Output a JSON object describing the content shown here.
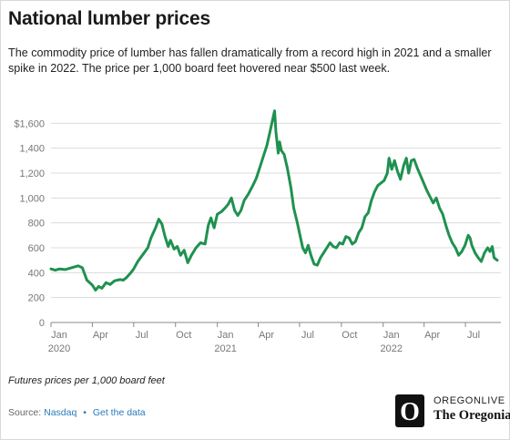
{
  "header": {
    "title": "National lumber prices",
    "subtitle": "The commodity price of lumber has fallen dramatically from a record high in 2021 and a smaller spike in 2022. The price per 1,000 board feet hovered near $500 last week."
  },
  "footer": {
    "note": "Futures prices per 1,000 board feet",
    "source_label": "Source:",
    "source_name": "Nasdaq",
    "separator": "•",
    "data_link": "Get the data"
  },
  "branding": {
    "top": "OREGONLIVE",
    "bottom": "The Oregonian",
    "logo_letter": "O"
  },
  "colors": {
    "line": "#1f9150",
    "grid": "#dcdcdc",
    "axis": "#888888",
    "tick_text": "#777777",
    "link": "#2a7ab8"
  },
  "chart_data": {
    "type": "line",
    "title": "National lumber prices",
    "xlabel": "",
    "ylabel": "",
    "note": "Futures prices per 1,000 board feet",
    "unit": "USD per 1,000 board feet",
    "xlim": [
      "2020-01-01",
      "2022-09-17"
    ],
    "ylim": [
      0,
      1800
    ],
    "y_ticks": [
      0,
      200,
      400,
      600,
      800,
      1000,
      1200,
      1400,
      1600
    ],
    "y_tick_labels": [
      "0",
      "200",
      "400",
      "600",
      "800",
      "1,000",
      "1,200",
      "1,400",
      "$1,600"
    ],
    "x_ticks": [
      {
        "date": "2020-01-01",
        "label": "Jan",
        "year": "2020"
      },
      {
        "date": "2020-04-01",
        "label": "Apr",
        "year": ""
      },
      {
        "date": "2020-07-01",
        "label": "Jul",
        "year": ""
      },
      {
        "date": "2020-10-01",
        "label": "Oct",
        "year": ""
      },
      {
        "date": "2021-01-01",
        "label": "Jan",
        "year": "2021"
      },
      {
        "date": "2021-04-01",
        "label": "Apr",
        "year": ""
      },
      {
        "date": "2021-07-01",
        "label": "Jul",
        "year": ""
      },
      {
        "date": "2021-10-01",
        "label": "Oct",
        "year": ""
      },
      {
        "date": "2022-01-01",
        "label": "Jan",
        "year": "2022"
      },
      {
        "date": "2022-04-01",
        "label": "Apr",
        "year": ""
      },
      {
        "date": "2022-07-01",
        "label": "Jul",
        "year": ""
      }
    ],
    "grid": true,
    "legend": "none",
    "series": [
      {
        "points": [
          [
            "2020-01-01",
            430
          ],
          [
            "2020-01-10",
            420
          ],
          [
            "2020-01-20",
            430
          ],
          [
            "2020-02-01",
            425
          ],
          [
            "2020-02-15",
            440
          ],
          [
            "2020-03-01",
            455
          ],
          [
            "2020-03-10",
            440
          ],
          [
            "2020-03-20",
            340
          ],
          [
            "2020-04-01",
            300
          ],
          [
            "2020-04-08",
            260
          ],
          [
            "2020-04-15",
            290
          ],
          [
            "2020-04-22",
            275
          ],
          [
            "2020-05-01",
            320
          ],
          [
            "2020-05-10",
            305
          ],
          [
            "2020-05-20",
            335
          ],
          [
            "2020-06-01",
            345
          ],
          [
            "2020-06-08",
            340
          ],
          [
            "2020-06-15",
            360
          ],
          [
            "2020-06-25",
            400
          ],
          [
            "2020-07-01",
            430
          ],
          [
            "2020-07-10",
            490
          ],
          [
            "2020-07-20",
            540
          ],
          [
            "2020-08-01",
            600
          ],
          [
            "2020-08-08",
            680
          ],
          [
            "2020-08-18",
            760
          ],
          [
            "2020-08-25",
            830
          ],
          [
            "2020-09-01",
            790
          ],
          [
            "2020-09-08",
            690
          ],
          [
            "2020-09-15",
            610
          ],
          [
            "2020-09-20",
            660
          ],
          [
            "2020-09-28",
            590
          ],
          [
            "2020-10-05",
            610
          ],
          [
            "2020-10-12",
            540
          ],
          [
            "2020-10-20",
            580
          ],
          [
            "2020-10-28",
            480
          ],
          [
            "2020-11-05",
            540
          ],
          [
            "2020-11-15",
            600
          ],
          [
            "2020-11-25",
            640
          ],
          [
            "2020-12-05",
            630
          ],
          [
            "2020-12-12",
            780
          ],
          [
            "2020-12-18",
            840
          ],
          [
            "2020-12-25",
            760
          ],
          [
            "2021-01-01",
            870
          ],
          [
            "2021-01-10",
            890
          ],
          [
            "2021-01-18",
            920
          ],
          [
            "2021-01-25",
            950
          ],
          [
            "2021-02-01",
            1000
          ],
          [
            "2021-02-08",
            900
          ],
          [
            "2021-02-15",
            860
          ],
          [
            "2021-02-22",
            900
          ],
          [
            "2021-03-01",
            980
          ],
          [
            "2021-03-10",
            1030
          ],
          [
            "2021-03-20",
            1100
          ],
          [
            "2021-03-28",
            1160
          ],
          [
            "2021-04-05",
            1250
          ],
          [
            "2021-04-12",
            1330
          ],
          [
            "2021-04-20",
            1420
          ],
          [
            "2021-04-28",
            1550
          ],
          [
            "2021-05-04",
            1650
          ],
          [
            "2021-05-07",
            1700
          ],
          [
            "2021-05-10",
            1530
          ],
          [
            "2021-05-15",
            1360
          ],
          [
            "2021-05-18",
            1450
          ],
          [
            "2021-05-22",
            1380
          ],
          [
            "2021-05-28",
            1350
          ],
          [
            "2021-06-04",
            1240
          ],
          [
            "2021-06-12",
            1080
          ],
          [
            "2021-06-18",
            920
          ],
          [
            "2021-06-26",
            800
          ],
          [
            "2021-07-02",
            700
          ],
          [
            "2021-07-08",
            600
          ],
          [
            "2021-07-14",
            560
          ],
          [
            "2021-07-20",
            620
          ],
          [
            "2021-07-26",
            540
          ],
          [
            "2021-08-02",
            470
          ],
          [
            "2021-08-09",
            460
          ],
          [
            "2021-08-16",
            520
          ],
          [
            "2021-08-23",
            560
          ],
          [
            "2021-08-30",
            600
          ],
          [
            "2021-09-06",
            640
          ],
          [
            "2021-09-13",
            610
          ],
          [
            "2021-09-20",
            600
          ],
          [
            "2021-09-27",
            640
          ],
          [
            "2021-10-04",
            630
          ],
          [
            "2021-10-11",
            690
          ],
          [
            "2021-10-18",
            680
          ],
          [
            "2021-10-25",
            630
          ],
          [
            "2021-11-01",
            650
          ],
          [
            "2021-11-08",
            720
          ],
          [
            "2021-11-15",
            760
          ],
          [
            "2021-11-22",
            850
          ],
          [
            "2021-11-29",
            880
          ],
          [
            "2021-12-06",
            980
          ],
          [
            "2021-12-13",
            1050
          ],
          [
            "2021-12-20",
            1100
          ],
          [
            "2021-12-27",
            1120
          ],
          [
            "2022-01-03",
            1140
          ],
          [
            "2022-01-10",
            1200
          ],
          [
            "2022-01-14",
            1320
          ],
          [
            "2022-01-20",
            1230
          ],
          [
            "2022-01-26",
            1300
          ],
          [
            "2022-02-01",
            1220
          ],
          [
            "2022-02-08",
            1150
          ],
          [
            "2022-02-15",
            1260
          ],
          [
            "2022-02-21",
            1320
          ],
          [
            "2022-02-26",
            1200
          ],
          [
            "2022-03-04",
            1300
          ],
          [
            "2022-03-10",
            1310
          ],
          [
            "2022-03-17",
            1240
          ],
          [
            "2022-03-24",
            1180
          ],
          [
            "2022-03-31",
            1120
          ],
          [
            "2022-04-07",
            1060
          ],
          [
            "2022-04-14",
            1010
          ],
          [
            "2022-04-21",
            960
          ],
          [
            "2022-04-28",
            1000
          ],
          [
            "2022-05-05",
            920
          ],
          [
            "2022-05-12",
            870
          ],
          [
            "2022-05-19",
            780
          ],
          [
            "2022-05-26",
            700
          ],
          [
            "2022-06-02",
            640
          ],
          [
            "2022-06-09",
            600
          ],
          [
            "2022-06-16",
            540
          ],
          [
            "2022-06-23",
            570
          ],
          [
            "2022-06-30",
            620
          ],
          [
            "2022-07-07",
            700
          ],
          [
            "2022-07-11",
            680
          ],
          [
            "2022-07-15",
            620
          ],
          [
            "2022-07-22",
            560
          ],
          [
            "2022-07-29",
            520
          ],
          [
            "2022-08-05",
            490
          ],
          [
            "2022-08-12",
            560
          ],
          [
            "2022-08-19",
            600
          ],
          [
            "2022-08-24",
            570
          ],
          [
            "2022-08-29",
            610
          ],
          [
            "2022-09-02",
            520
          ],
          [
            "2022-09-09",
            500
          ]
        ]
      }
    ]
  }
}
